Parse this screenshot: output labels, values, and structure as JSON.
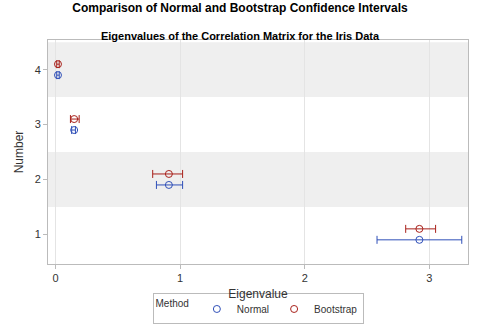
{
  "chart_data": {
    "type": "scatter",
    "title": "Comparison of Normal and Bootstrap Confidence Intervals",
    "subtitle": "Eigenvalues of the Correlation Matrix for the Iris Data",
    "x_label": "Eigenvalue",
    "y_label": "Number",
    "legend_title": "Method",
    "orientation": "horizontal",
    "y": [
      1,
      2,
      3,
      4
    ],
    "series": [
      {
        "name": "Normal",
        "color": "#2f4fb8",
        "marker": "circle-open",
        "values": [
          2.92,
          0.91,
          0.15,
          0.02
        ],
        "lower": [
          2.58,
          0.81,
          0.13,
          0.01
        ],
        "upper": [
          3.26,
          1.02,
          0.16,
          0.03
        ]
      },
      {
        "name": "Bootstrap",
        "color": "#a8201a",
        "marker": "circle-open",
        "values": [
          2.92,
          0.91,
          0.15,
          0.02
        ],
        "lower": [
          2.81,
          0.78,
          0.12,
          0.01
        ],
        "upper": [
          3.05,
          1.02,
          0.19,
          0.03
        ]
      }
    ],
    "xlim": [
      -0.06,
      3.31
    ],
    "xticks": [
      0,
      1,
      2,
      3
    ],
    "ylim": [
      0.46,
      4.54
    ],
    "yticks": [
      1,
      2,
      3,
      4
    ],
    "grid": true,
    "legend": "bottom"
  }
}
